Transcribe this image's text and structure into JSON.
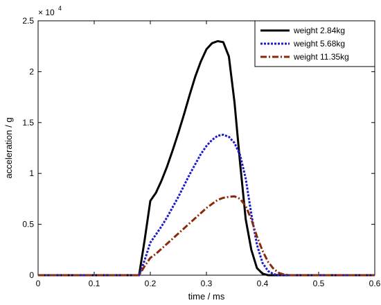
{
  "chart_data": {
    "type": "line",
    "xlabel": "time  /  ms",
    "ylabel": "acceleration  /  g",
    "exponent_label": "× 10",
    "exponent_power": "4",
    "xlim": [
      0,
      0.6
    ],
    "ylim": [
      0,
      25000
    ],
    "xticks": [
      0,
      0.1,
      0.2,
      0.3,
      0.4,
      0.5,
      0.6
    ],
    "xtick_labels": [
      "0",
      "0.1",
      "0.2",
      "0.3",
      "0.4",
      "0.5",
      "0.6"
    ],
    "yticks": [
      0,
      5000,
      10000,
      15000,
      20000,
      25000
    ],
    "ytick_labels": [
      "0",
      "0.5",
      "1",
      "1.5",
      "2",
      "2.5"
    ],
    "grid": false,
    "legend_position": "top-right",
    "series": [
      {
        "name": "weight 2.84kg",
        "color": "#000000",
        "style": "solid",
        "points": [
          [
            0,
            0
          ],
          [
            0.18,
            0
          ],
          [
            0.19,
            3500
          ],
          [
            0.2,
            7300
          ],
          [
            0.21,
            8100
          ],
          [
            0.22,
            9300
          ],
          [
            0.23,
            10700
          ],
          [
            0.24,
            12300
          ],
          [
            0.25,
            14000
          ],
          [
            0.26,
            15800
          ],
          [
            0.27,
            17700
          ],
          [
            0.28,
            19500
          ],
          [
            0.29,
            21000
          ],
          [
            0.3,
            22200
          ],
          [
            0.31,
            22800
          ],
          [
            0.32,
            23000
          ],
          [
            0.33,
            22900
          ],
          [
            0.34,
            21500
          ],
          [
            0.35,
            17000
          ],
          [
            0.36,
            11000
          ],
          [
            0.37,
            5500
          ],
          [
            0.38,
            2500
          ],
          [
            0.39,
            700
          ],
          [
            0.4,
            150
          ],
          [
            0.41,
            0
          ],
          [
            0.6,
            0
          ]
        ]
      },
      {
        "name": "weight 5.68kg",
        "color": "#1a1acc",
        "style": "dotted",
        "points": [
          [
            0,
            0
          ],
          [
            0.18,
            0
          ],
          [
            0.19,
            1500
          ],
          [
            0.2,
            3200
          ],
          [
            0.21,
            4000
          ],
          [
            0.22,
            4800
          ],
          [
            0.23,
            5700
          ],
          [
            0.24,
            6700
          ],
          [
            0.25,
            7700
          ],
          [
            0.26,
            8800
          ],
          [
            0.27,
            9900
          ],
          [
            0.28,
            10900
          ],
          [
            0.29,
            11900
          ],
          [
            0.3,
            12700
          ],
          [
            0.31,
            13300
          ],
          [
            0.32,
            13700
          ],
          [
            0.33,
            13800
          ],
          [
            0.34,
            13600
          ],
          [
            0.35,
            13000
          ],
          [
            0.36,
            11800
          ],
          [
            0.37,
            9500
          ],
          [
            0.38,
            6000
          ],
          [
            0.39,
            3000
          ],
          [
            0.4,
            1200
          ],
          [
            0.41,
            400
          ],
          [
            0.42,
            100
          ],
          [
            0.43,
            0
          ],
          [
            0.6,
            0
          ]
        ]
      },
      {
        "name": "weight 11.35kg",
        "color": "#8b2a0a",
        "style": "dash-dot",
        "points": [
          [
            0,
            0
          ],
          [
            0.18,
            0
          ],
          [
            0.19,
            900
          ],
          [
            0.2,
            1700
          ],
          [
            0.21,
            2100
          ],
          [
            0.22,
            2600
          ],
          [
            0.23,
            3100
          ],
          [
            0.24,
            3600
          ],
          [
            0.25,
            4100
          ],
          [
            0.26,
            4600
          ],
          [
            0.27,
            5100
          ],
          [
            0.28,
            5600
          ],
          [
            0.29,
            6100
          ],
          [
            0.3,
            6600
          ],
          [
            0.31,
            7000
          ],
          [
            0.32,
            7400
          ],
          [
            0.33,
            7600
          ],
          [
            0.34,
            7700
          ],
          [
            0.35,
            7750
          ],
          [
            0.36,
            7500
          ],
          [
            0.37,
            6800
          ],
          [
            0.38,
            5500
          ],
          [
            0.39,
            3800
          ],
          [
            0.4,
            2400
          ],
          [
            0.41,
            1300
          ],
          [
            0.42,
            600
          ],
          [
            0.43,
            200
          ],
          [
            0.44,
            50
          ],
          [
            0.45,
            0
          ],
          [
            0.6,
            0
          ]
        ]
      }
    ]
  }
}
